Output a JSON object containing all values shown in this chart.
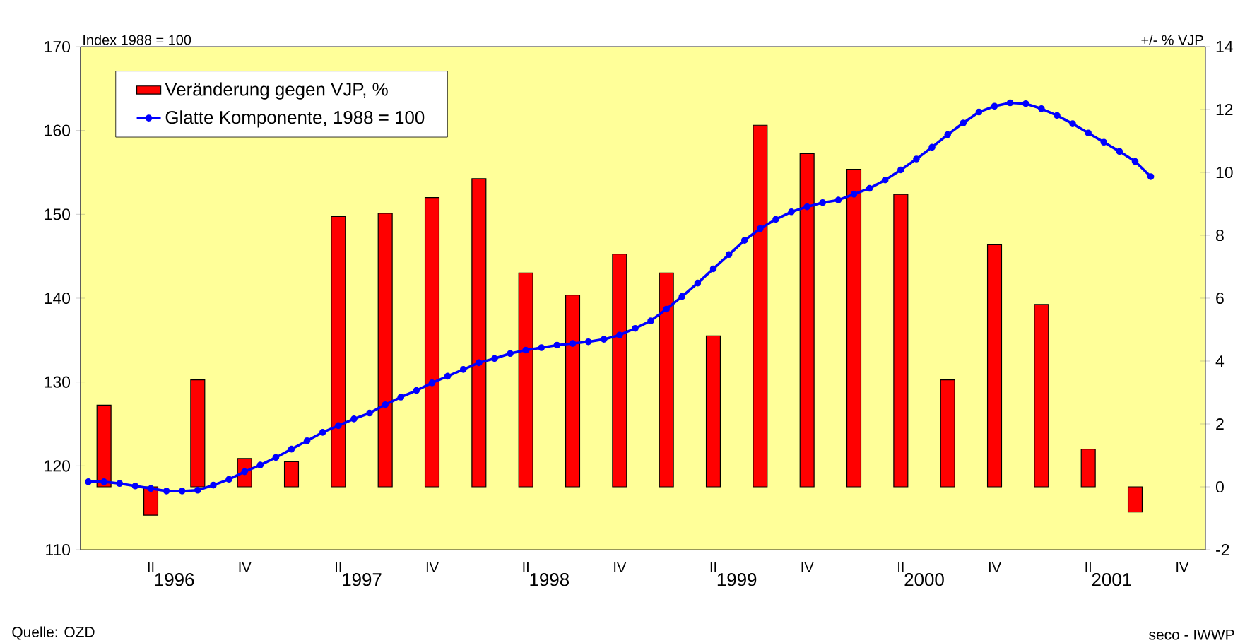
{
  "chart_data": {
    "type": "bar",
    "ylabel": "Index 1988 = 100",
    "y2label": "+/- % VJP",
    "annotations": [
      "Quelle: OZD",
      "seco - IWWP"
    ],
    "legend": "top left",
    "categories": [
      null,
      null,
      null,
      null,
      "II",
      null,
      null,
      null,
      null,
      null,
      "IV",
      null,
      null,
      null,
      null,
      null,
      "II",
      null,
      null,
      null,
      null,
      null,
      "IV",
      null,
      null,
      null,
      null,
      null,
      "II",
      null,
      null,
      null,
      null,
      null,
      "IV",
      null,
      null,
      null,
      null,
      null,
      "II",
      null,
      null,
      null,
      null,
      null,
      "IV",
      null,
      null,
      null,
      null,
      null,
      "II",
      null,
      null,
      null,
      null,
      null,
      "IV",
      null,
      null,
      null,
      null,
      null,
      "II",
      null,
      null,
      null,
      null,
      null,
      "IV",
      null
    ],
    "x2lim": [
      1996,
      2002
    ],
    "x2ticks": [
      {
        "value": 1996.5,
        "label": "1996"
      },
      {
        "value": 1997.5,
        "label": "1997"
      },
      {
        "value": 1998.5,
        "label": "1998"
      },
      {
        "value": 1999.5,
        "label": "1999"
      },
      {
        "value": 2000.5,
        "label": "2000"
      },
      {
        "value": 2001.5,
        "label": "2001"
      }
    ],
    "ylim": [
      110,
      170
    ],
    "yticks": [
      110,
      120,
      130,
      140,
      150,
      160,
      170
    ],
    "y2lim": [
      -2,
      14
    ],
    "y2ticks": [
      -2,
      0,
      2,
      4,
      6,
      8,
      10,
      12,
      14
    ],
    "series": [
      {
        "name": "Veränderung gegen VJP, %",
        "axis": "y2",
        "color": "#ff0000",
        "values": [
          null,
          2.6,
          null,
          null,
          -0.9,
          null,
          null,
          3.4,
          null,
          null,
          0.9,
          null,
          null,
          0.8,
          null,
          null,
          8.6,
          null,
          null,
          8.7,
          null,
          null,
          9.2,
          null,
          null,
          9.8,
          null,
          null,
          6.8,
          null,
          null,
          6.1,
          null,
          null,
          7.4,
          null,
          null,
          6.8,
          null,
          null,
          4.8,
          null,
          null,
          11.5,
          null,
          null,
          10.6,
          null,
          null,
          10.1,
          null,
          null,
          9.3,
          null,
          null,
          3.4,
          null,
          null,
          7.7,
          null,
          null,
          5.8,
          null,
          null,
          1.2,
          null,
          null,
          -0.8,
          null,
          null,
          null,
          null
        ]
      },
      {
        "name": "Glatte Komponente, 1988 = 100",
        "type": "line",
        "axis": "y",
        "color": "#0000ff",
        "marker": "circle",
        "line_style": "solid",
        "values": [
          118.1,
          118.1,
          117.9,
          117.6,
          117.3,
          117.0,
          117.0,
          117.1,
          117.7,
          118.4,
          119.3,
          120.1,
          121.0,
          122.0,
          123.0,
          124.0,
          124.8,
          125.6,
          126.3,
          127.3,
          128.2,
          129.0,
          129.9,
          130.7,
          131.5,
          132.3,
          132.8,
          133.4,
          133.8,
          134.1,
          134.4,
          134.6,
          134.8,
          135.1,
          135.6,
          136.4,
          137.3,
          138.7,
          140.2,
          141.8,
          143.5,
          145.2,
          146.9,
          148.3,
          149.4,
          150.3,
          150.9,
          151.4,
          151.7,
          152.4,
          153.1,
          154.1,
          155.3,
          156.6,
          158.0,
          159.5,
          160.9,
          162.2,
          162.9,
          163.3,
          163.2,
          162.6,
          161.8,
          160.8,
          159.7,
          158.6,
          157.5,
          156.3,
          154.5,
          null,
          null,
          null
        ]
      }
    ]
  }
}
